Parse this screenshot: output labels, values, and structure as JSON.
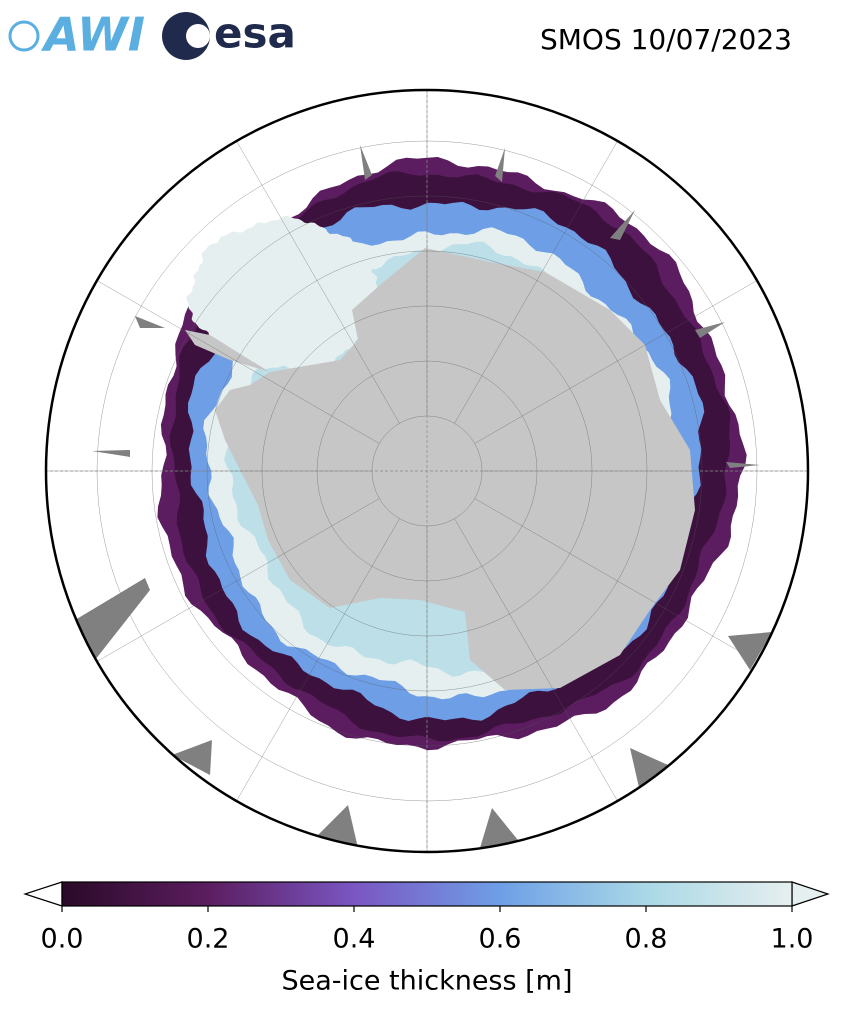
{
  "header": {
    "logos": [
      "AWI",
      "esa"
    ],
    "title": "SMOS 10/07/2023"
  },
  "colorbar": {
    "label": "Sea-ice thickness [m]",
    "lim": [
      0,
      1
    ],
    "ticks": [
      {
        "value": 0,
        "label": "0.0"
      },
      0.2,
      0.4,
      0.6,
      0.8,
      {
        "value": 1,
        "label": "1.0"
      }
    ],
    "colors": [
      "#2a0a28",
      "#5b1d5f",
      "#7a56c2",
      "#6e9fe6",
      "#a9d8e6",
      "#e6efef"
    ]
  }
}
